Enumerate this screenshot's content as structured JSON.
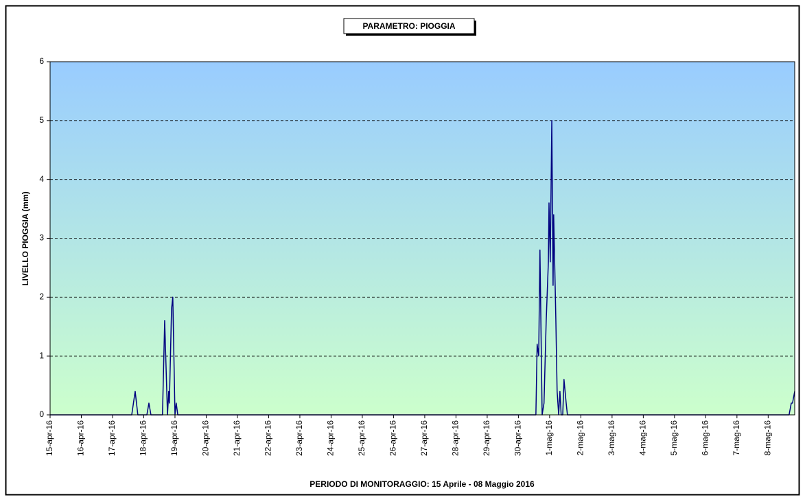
{
  "chart_data": {
    "type": "line",
    "title": "PARAMETRO: PIOGGIA",
    "y_label": "LIVELLO PIOGGIA (mm)",
    "x_label": "PERIODO DI MONITORAGGIO: 15 Aprile - 08 Maggio 2016",
    "x": [
      0,
      2.615,
      2.725,
      2.81,
      3.1,
      3.165,
      3.23,
      3.6,
      3.67,
      3.76,
      3.8,
      3.82,
      3.89,
      3.93,
      4.0,
      4.04,
      4.09,
      15.56,
      15.6,
      15.65,
      15.69,
      15.76,
      15.82,
      15.89,
      15.96,
      15.98,
      16.02,
      16.07,
      16.11,
      16.13,
      16.2,
      16.24,
      16.29,
      16.33,
      16.37,
      16.42,
      16.46,
      16.53,
      16.57,
      23.67,
      23.74,
      23.78,
      23.85
    ],
    "series": [
      {
        "name": "PIOGGIA",
        "color": "#000080",
        "values": [
          0,
          0,
          0.4,
          0,
          0,
          0.2,
          0,
          0,
          1.6,
          0,
          0.4,
          0.2,
          1.8,
          2.0,
          0,
          0.2,
          0,
          0,
          1.2,
          1.0,
          2.8,
          0,
          0.2,
          1.6,
          2.6,
          3.6,
          2.6,
          5.0,
          2.2,
          3.4,
          1.6,
          0.4,
          0,
          0.4,
          0,
          0,
          0.6,
          0.2,
          0,
          0,
          0.2,
          0.2,
          0.4
        ]
      }
    ],
    "xlim": [
      0,
      23.85
    ],
    "xticks": [
      {
        "value": 0,
        "label": "15-apr-16"
      },
      {
        "value": 1,
        "label": "16-apr-16"
      },
      {
        "value": 2,
        "label": "17-apr-16"
      },
      {
        "value": 3,
        "label": "18-apr-16"
      },
      {
        "value": 4,
        "label": "19-apr-16"
      },
      {
        "value": 5,
        "label": "20-apr-16"
      },
      {
        "value": 6,
        "label": "21-apr-16"
      },
      {
        "value": 7,
        "label": "22-apr-16"
      },
      {
        "value": 8,
        "label": "23-apr-16"
      },
      {
        "value": 9,
        "label": "24-apr-16"
      },
      {
        "value": 10,
        "label": "25-apr-16"
      },
      {
        "value": 11,
        "label": "26-apr-16"
      },
      {
        "value": 12,
        "label": "27-apr-16"
      },
      {
        "value": 13,
        "label": "28-apr-16"
      },
      {
        "value": 14,
        "label": "29-apr-16"
      },
      {
        "value": 15,
        "label": "30-apr-16"
      },
      {
        "value": 16,
        "label": "1-mag-16"
      },
      {
        "value": 17,
        "label": "2-mag-16"
      },
      {
        "value": 18,
        "label": "3-mag-16"
      },
      {
        "value": 19,
        "label": "4-mag-16"
      },
      {
        "value": 20,
        "label": "5-mag-16"
      },
      {
        "value": 21,
        "label": "6-mag-16"
      },
      {
        "value": 22,
        "label": "7-mag-16"
      },
      {
        "value": 23,
        "label": "8-mag-16"
      }
    ],
    "ylim": [
      0,
      6
    ],
    "yticks": [
      0,
      1,
      2,
      3,
      4,
      5,
      6
    ],
    "grid": true,
    "background": [
      "#99ccff",
      "#ccffcc"
    ]
  }
}
